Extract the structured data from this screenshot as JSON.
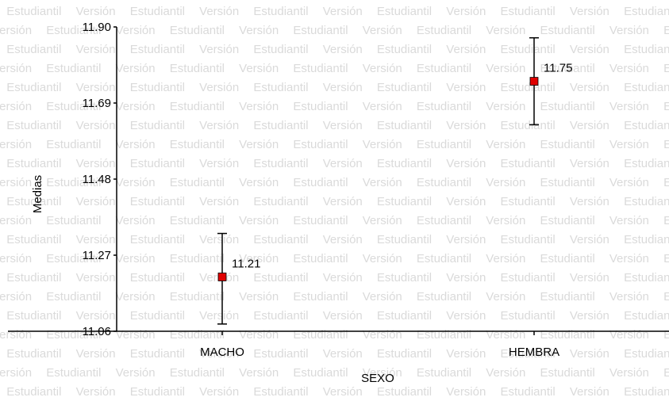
{
  "watermark": "Versión Estudiantil",
  "chart_data": {
    "type": "scatter",
    "xlabel": "SEXO",
    "ylabel": "Medias",
    "categories": [
      "MACHO",
      "HEMBRA"
    ],
    "values": [
      11.21,
      11.75
    ],
    "value_labels": [
      "11.21",
      "11.75"
    ],
    "error_bars": [
      {
        "lower": 11.08,
        "upper": 11.33
      },
      {
        "lower": 11.63,
        "upper": 11.87
      }
    ],
    "ylim": [
      11.06,
      11.9
    ],
    "yticks": [
      11.06,
      11.27,
      11.48,
      11.69,
      11.9
    ],
    "ytick_labels": [
      "11.06",
      "11.27",
      "11.48",
      "11.69",
      "11.90"
    ],
    "grid": false,
    "marker_color": "#e00000"
  }
}
